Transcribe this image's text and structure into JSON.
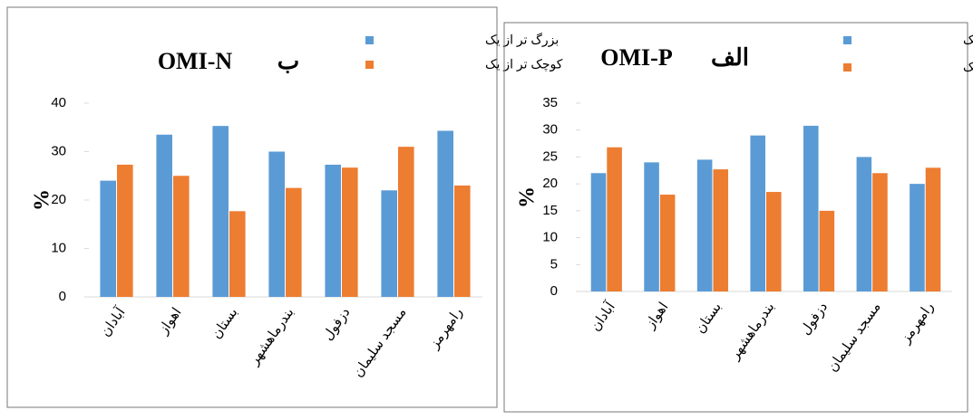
{
  "chart_data": [
    {
      "type": "bar",
      "title": "OMI-N",
      "panel_label": "ب",
      "y_label": "%",
      "categories": [
        "آبادان",
        "اهواز",
        "بستان",
        "بندرماهشهر",
        "دزفول",
        "مسجد سلیمان",
        "رامهرمز"
      ],
      "series": [
        {
          "name": "بزرگ تر از یک",
          "color": "#5b9bd5",
          "values": [
            24,
            33.5,
            35.3,
            30,
            27.3,
            22,
            34.3
          ]
        },
        {
          "name": "کوچک تر از یک",
          "color": "#ed7d31",
          "values": [
            27.3,
            25,
            17.7,
            22.5,
            26.7,
            31,
            23
          ]
        }
      ],
      "ylim": [
        0,
        40
      ],
      "yticks": [
        0,
        10,
        20,
        30,
        40
      ]
    },
    {
      "type": "bar",
      "title": "OMI-P",
      "panel_label": "الف",
      "y_label": "%",
      "categories": [
        "آبادان",
        "اهواز",
        "بستان",
        "بندرماهشهر",
        "دزفول",
        "مسجد سلیمان",
        "رامهرمز"
      ],
      "series": [
        {
          "name": "بزرگ تر از یک",
          "color": "#5b9bd5",
          "values": [
            22,
            24,
            24.5,
            29,
            30.8,
            25,
            20
          ]
        },
        {
          "name": "کوچک تر از یک",
          "color": "#ed7d31",
          "values": [
            26.8,
            18,
            22.7,
            18.5,
            15,
            22,
            23
          ]
        }
      ],
      "ylim": [
        0,
        35
      ],
      "yticks": [
        0,
        5,
        10,
        15,
        20,
        25,
        30,
        35
      ]
    }
  ]
}
